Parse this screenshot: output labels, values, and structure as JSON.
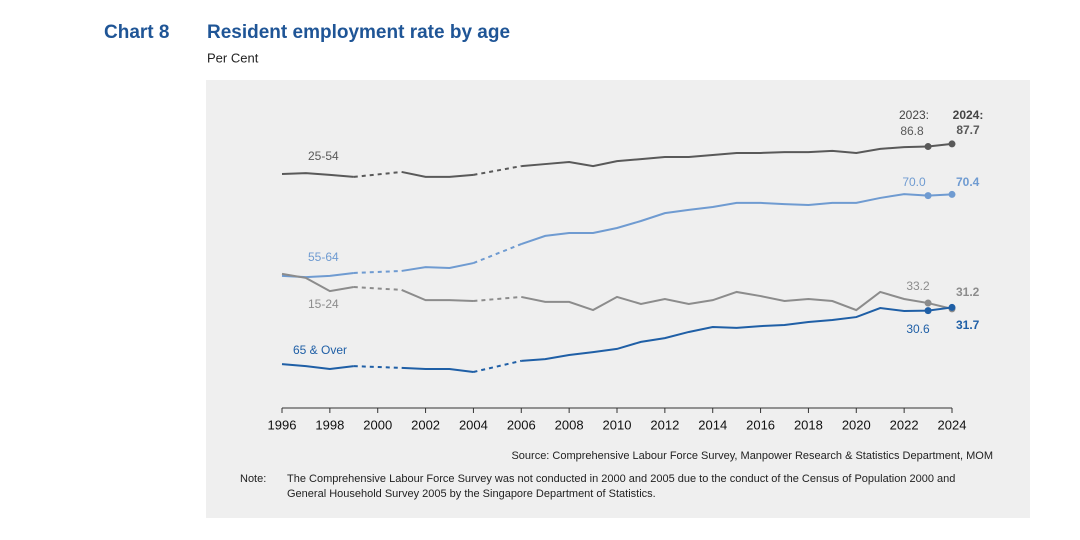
{
  "chart_data": {
    "type": "line",
    "label": "Chart 8",
    "title": "Resident employment rate by age",
    "subtitle": "Per Cent",
    "x": [
      1996,
      1997,
      1998,
      1999,
      2000,
      2001,
      2002,
      2003,
      2004,
      2005,
      2006,
      2007,
      2008,
      2009,
      2010,
      2011,
      2012,
      2013,
      2014,
      2015,
      2016,
      2017,
      2018,
      2019,
      2020,
      2021,
      2022,
      2023,
      2024
    ],
    "xlim": [
      1996,
      2024
    ],
    "xticks": [
      1996,
      1998,
      2000,
      2002,
      2004,
      2006,
      2008,
      2010,
      2012,
      2014,
      2016,
      2018,
      2020,
      2022,
      2024
    ],
    "ylim": [
      0,
      100
    ],
    "annotations": [
      "2023:",
      "2024:"
    ],
    "series": [
      {
        "name": "25-54",
        "color": "#595959",
        "values": [
          77.4,
          77.7,
          77.1,
          76.4,
          null,
          78.1,
          76.4,
          76.4,
          77.1,
          null,
          80.1,
          80.8,
          81.5,
          80.1,
          81.8,
          82.5,
          83.2,
          83.2,
          83.9,
          84.6,
          84.6,
          84.9,
          84.9,
          85.3,
          84.6,
          86.0,
          86.6,
          86.8,
          87.7
        ],
        "value_labels": [
          null,
          null,
          null,
          null,
          null,
          null,
          null,
          null,
          null,
          null,
          null,
          null,
          null,
          null,
          null,
          null,
          null,
          null,
          null,
          null,
          null,
          null,
          null,
          null,
          null,
          null,
          null,
          "86.8",
          "87.7"
        ]
      },
      {
        "name": "55-64",
        "color": "#6f9bd1",
        "values": [
          42.5,
          42.1,
          42.5,
          43.5,
          null,
          44.2,
          45.5,
          45.2,
          46.9,
          null,
          53.4,
          56.2,
          57.2,
          57.2,
          58.9,
          61.3,
          64.0,
          65.1,
          66.1,
          67.5,
          67.5,
          67.1,
          66.8,
          67.5,
          67.5,
          69.2,
          70.5,
          70.0,
          70.4
        ],
        "value_labels": [
          null,
          null,
          null,
          null,
          null,
          null,
          null,
          null,
          null,
          null,
          null,
          null,
          null,
          null,
          null,
          null,
          null,
          null,
          null,
          null,
          null,
          null,
          null,
          null,
          null,
          null,
          null,
          "70.0",
          "70.4"
        ]
      },
      {
        "name": "15-24",
        "color": "#8c8c8c",
        "values": [
          43.2,
          41.8,
          37.3,
          38.7,
          null,
          37.7,
          34.2,
          34.2,
          33.9,
          null,
          35.3,
          33.6,
          33.6,
          30.8,
          35.3,
          32.9,
          34.6,
          32.9,
          34.2,
          37.0,
          35.6,
          33.9,
          34.6,
          33.9,
          30.8,
          37.0,
          34.6,
          33.2,
          31.2
        ],
        "value_labels": [
          null,
          null,
          null,
          null,
          null,
          null,
          null,
          null,
          null,
          null,
          null,
          null,
          null,
          null,
          null,
          null,
          null,
          null,
          null,
          null,
          null,
          null,
          null,
          null,
          null,
          null,
          null,
          "33.2",
          "31.2"
        ]
      },
      {
        "name": "65 & Over",
        "color": "#1f5fa6",
        "values": [
          12.3,
          11.6,
          10.6,
          11.6,
          null,
          11.0,
          10.6,
          10.6,
          9.6,
          null,
          13.4,
          14.0,
          15.4,
          16.4,
          17.5,
          19.9,
          21.2,
          23.3,
          25.0,
          24.7,
          25.3,
          25.7,
          26.7,
          27.4,
          28.4,
          31.5,
          30.5,
          30.6,
          31.7
        ],
        "value_labels": [
          null,
          null,
          null,
          null,
          null,
          null,
          null,
          null,
          null,
          null,
          null,
          null,
          null,
          null,
          null,
          null,
          null,
          null,
          null,
          null,
          null,
          null,
          null,
          null,
          null,
          null,
          null,
          "30.6",
          "31.7"
        ]
      }
    ],
    "source": "Source: Comprehensive Labour Force Survey, Manpower Research & Statistics Department, MOM",
    "note_label": "Note:",
    "note": "The Comprehensive Labour Force Survey was not conducted in 2000 and 2005 due to the conduct of the Census of Population 2000 and General Household Survey 2005 by the Singapore Department of Statistics."
  }
}
